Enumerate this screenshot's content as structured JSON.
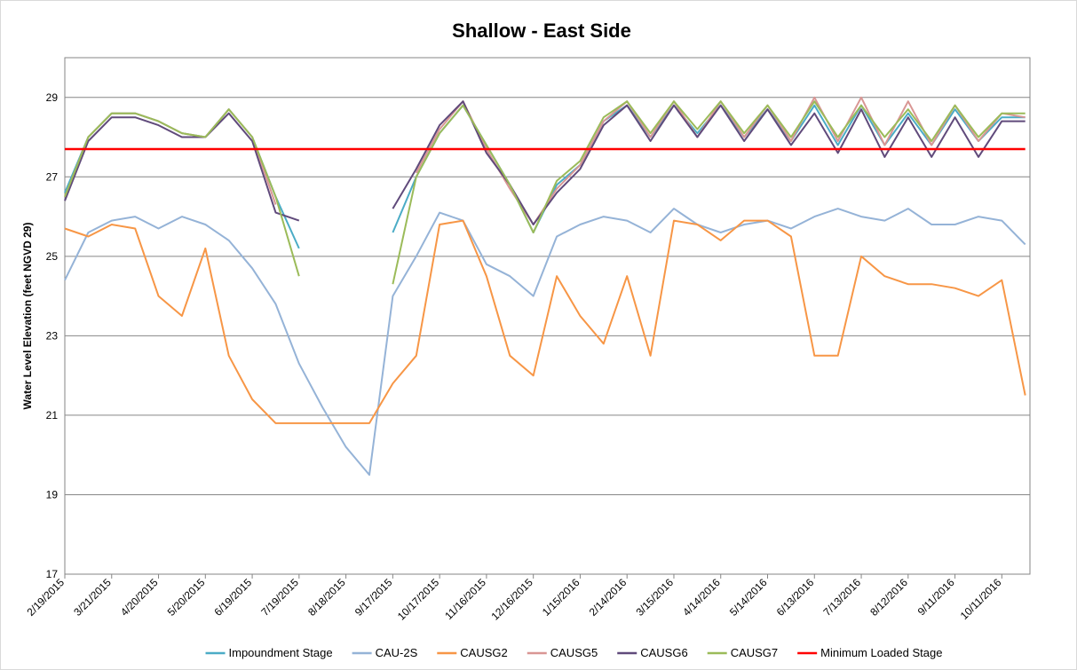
{
  "chart_data": {
    "type": "line",
    "title": "Shallow - East Side",
    "y_label": "Water Level Elevation (feet NGVD 29)",
    "x": [
      "2/19/2015",
      "3/6/2015",
      "3/21/2015",
      "4/5/2015",
      "4/20/2015",
      "5/5/2015",
      "5/20/2015",
      "6/4/2015",
      "6/19/2015",
      "7/4/2015",
      "7/19/2015",
      "8/3/2015",
      "8/18/2015",
      "9/2/2015",
      "9/17/2015",
      "10/2/2015",
      "10/17/2015",
      "11/1/2015",
      "11/16/2015",
      "12/1/2015",
      "12/16/2015",
      "12/31/2015",
      "1/15/2016",
      "1/30/2016",
      "2/14/2016",
      "2/29/2016",
      "3/15/2016",
      "3/30/2016",
      "4/14/2016",
      "4/29/2016",
      "5/14/2016",
      "5/29/2016",
      "6/13/2016",
      "6/28/2016",
      "7/13/2016",
      "7/28/2016",
      "8/12/2016",
      "8/27/2016",
      "9/11/2016",
      "9/26/2016",
      "10/11/2016",
      "10/26/2016"
    ],
    "xlim": [
      "2/19/2015",
      "10/29/2016"
    ],
    "xticks": [
      "2/19/2015",
      "3/21/2015",
      "4/20/2015",
      "5/20/2015",
      "6/19/2015",
      "7/19/2015",
      "8/18/2015",
      "9/17/2015",
      "10/17/2015",
      "11/16/2015",
      "12/16/2015",
      "1/15/2016",
      "2/14/2016",
      "3/15/2016",
      "4/14/2016",
      "5/14/2016",
      "6/13/2016",
      "7/13/2016",
      "8/12/2016",
      "9/11/2016",
      "10/11/2016"
    ],
    "ylim": [
      17,
      30
    ],
    "yticks": [
      17,
      19,
      21,
      23,
      25,
      27,
      29
    ],
    "grid": true,
    "legend": "bottom",
    "series": [
      {
        "name": "Impoundment Stage",
        "color": "#4bacc6",
        "values": [
          26.6,
          28.0,
          28.6,
          28.6,
          28.4,
          28.1,
          28.0,
          28.7,
          28.0,
          26.5,
          25.2,
          null,
          null,
          null,
          25.6,
          27.0,
          28.1,
          28.8,
          27.8,
          26.8,
          25.6,
          26.8,
          27.3,
          28.4,
          28.8,
          28.0,
          28.8,
          28.1,
          28.8,
          28.0,
          28.7,
          27.9,
          28.8,
          27.8,
          28.8,
          27.8,
          28.6,
          27.8,
          28.7,
          27.9,
          28.5,
          28.5
        ]
      },
      {
        "name": "CAU-2S",
        "color": "#95b3d7",
        "values": [
          24.4,
          25.6,
          25.9,
          26.0,
          25.7,
          26.0,
          25.8,
          25.4,
          24.7,
          23.8,
          22.3,
          21.2,
          20.2,
          19.5,
          24.0,
          25.0,
          26.1,
          25.9,
          24.8,
          24.5,
          24.0,
          25.5,
          25.8,
          26.0,
          25.9,
          25.6,
          26.2,
          25.8,
          25.6,
          25.8,
          25.9,
          25.7,
          26.0,
          26.2,
          26.0,
          25.9,
          26.2,
          25.8,
          25.8,
          26.0,
          25.9,
          25.3
        ]
      },
      {
        "name": "CAUSG2",
        "color": "#f79646",
        "values": [
          25.7,
          25.5,
          25.8,
          25.7,
          24.0,
          23.5,
          25.2,
          22.5,
          21.4,
          20.8,
          20.8,
          20.8,
          20.8,
          20.8,
          21.8,
          22.5,
          25.8,
          25.9,
          24.5,
          22.5,
          22.0,
          24.5,
          23.5,
          22.8,
          24.5,
          22.5,
          25.9,
          25.8,
          25.4,
          25.9,
          25.9,
          25.5,
          22.5,
          22.5,
          25.0,
          24.5,
          24.3,
          24.3,
          24.2,
          24.0,
          24.4,
          21.5
        ]
      },
      {
        "name": "CAUSG5",
        "color": "#d99694",
        "values": [
          26.5,
          28.0,
          28.6,
          28.6,
          28.4,
          28.1,
          28.0,
          28.7,
          28.0,
          26.3,
          null,
          null,
          null,
          null,
          null,
          27.1,
          28.2,
          28.9,
          27.7,
          26.7,
          25.8,
          26.7,
          27.3,
          28.4,
          28.9,
          28.0,
          28.9,
          28.0,
          28.9,
          28.0,
          28.8,
          27.9,
          29.0,
          27.9,
          29.0,
          27.8,
          28.9,
          27.8,
          28.8,
          27.9,
          28.6,
          28.5
        ]
      },
      {
        "name": "CAUSG6",
        "color": "#604a7b",
        "values": [
          26.4,
          27.9,
          28.5,
          28.5,
          28.3,
          28.0,
          28.0,
          28.6,
          27.9,
          26.1,
          25.9,
          null,
          null,
          null,
          26.2,
          27.2,
          28.3,
          28.9,
          27.6,
          26.8,
          25.8,
          26.6,
          27.2,
          28.3,
          28.8,
          27.9,
          28.8,
          28.0,
          28.8,
          27.9,
          28.7,
          27.8,
          28.6,
          27.6,
          28.7,
          27.5,
          28.5,
          27.5,
          28.5,
          27.5,
          28.4,
          28.4
        ]
      },
      {
        "name": "CAUSG7",
        "color": "#9bbb59",
        "values": [
          26.5,
          28.0,
          28.6,
          28.6,
          28.4,
          28.1,
          28.0,
          28.7,
          28.0,
          26.5,
          24.5,
          null,
          null,
          null,
          24.3,
          27.0,
          28.1,
          28.8,
          27.8,
          26.8,
          25.6,
          26.9,
          27.4,
          28.5,
          28.9,
          28.1,
          28.9,
          28.2,
          28.9,
          28.1,
          28.8,
          28.0,
          28.9,
          28.0,
          28.8,
          28.0,
          28.7,
          27.9,
          28.8,
          28.0,
          28.6,
          28.6
        ]
      },
      {
        "name": "Minimum Loaded Stage",
        "color": "#ff0000",
        "values": [
          27.7,
          27.7,
          27.7,
          27.7,
          27.7,
          27.7,
          27.7,
          27.7,
          27.7,
          27.7,
          27.7,
          27.7,
          27.7,
          27.7,
          27.7,
          27.7,
          27.7,
          27.7,
          27.7,
          27.7,
          27.7,
          27.7,
          27.7,
          27.7,
          27.7,
          27.7,
          27.7,
          27.7,
          27.7,
          27.7,
          27.7,
          27.7,
          27.7,
          27.7,
          27.7,
          27.7,
          27.7,
          27.7,
          27.7,
          27.7,
          27.7,
          27.7
        ]
      }
    ]
  }
}
